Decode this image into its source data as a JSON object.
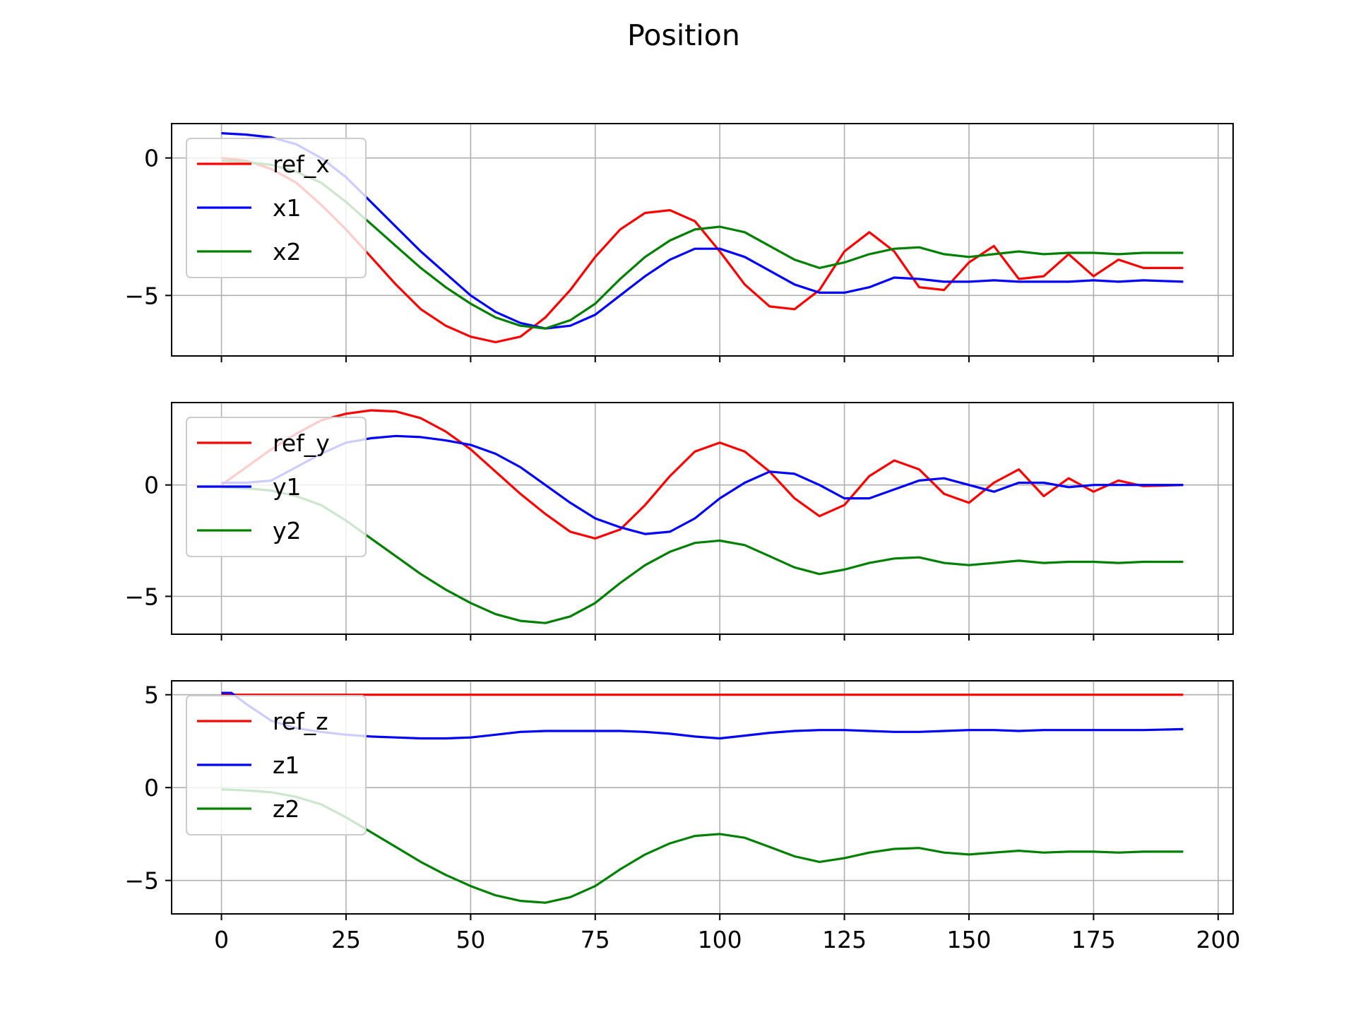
{
  "title": "Position",
  "colors": {
    "red": "#ff0000",
    "blue": "#0000ff",
    "green": "#008000",
    "grid": "#b0b0b0"
  },
  "chart_data": [
    {
      "type": "line",
      "xlim": [
        -10,
        203
      ],
      "ylim": [
        -7.2,
        1.25
      ],
      "yticks": [
        0,
        -5
      ],
      "ytick_labels": [
        "0",
        "−5"
      ],
      "xticks": [
        0,
        25,
        50,
        75,
        100,
        125,
        150,
        175,
        200
      ],
      "grid": true,
      "legend": "top-left",
      "series": [
        {
          "name": "ref_x",
          "color": "red",
          "x": [
            0,
            5,
            10,
            15,
            20,
            25,
            30,
            35,
            40,
            45,
            50,
            55,
            60,
            65,
            70,
            75,
            80,
            85,
            90,
            95,
            100,
            105,
            110,
            115,
            120,
            125,
            130,
            135,
            140,
            145,
            150,
            155,
            160,
            165,
            170,
            175,
            180,
            185,
            193
          ],
          "y": [
            0,
            -0.1,
            -0.4,
            -0.9,
            -1.7,
            -2.6,
            -3.6,
            -4.6,
            -5.5,
            -6.1,
            -6.5,
            -6.7,
            -6.5,
            -5.8,
            -4.8,
            -3.6,
            -2.6,
            -2.0,
            -1.9,
            -2.3,
            -3.4,
            -4.6,
            -5.4,
            -5.5,
            -4.8,
            -3.4,
            -2.7,
            -3.4,
            -4.7,
            -4.8,
            -3.8,
            -3.2,
            -4.4,
            -4.3,
            -3.5,
            -4.3,
            -3.7,
            -4.0,
            -4.0
          ]
        },
        {
          "name": "x1",
          "color": "blue",
          "x": [
            0,
            5,
            10,
            15,
            20,
            25,
            30,
            35,
            40,
            45,
            50,
            55,
            60,
            65,
            70,
            75,
            80,
            85,
            90,
            95,
            100,
            105,
            110,
            115,
            120,
            125,
            130,
            135,
            140,
            145,
            150,
            155,
            160,
            165,
            170,
            175,
            180,
            185,
            193
          ],
          "y": [
            0.9,
            0.85,
            0.75,
            0.5,
            0.0,
            -0.7,
            -1.6,
            -2.5,
            -3.4,
            -4.2,
            -5.0,
            -5.6,
            -6.0,
            -6.2,
            -6.1,
            -5.7,
            -5.0,
            -4.3,
            -3.7,
            -3.3,
            -3.3,
            -3.6,
            -4.1,
            -4.6,
            -4.9,
            -4.9,
            -4.7,
            -4.35,
            -4.4,
            -4.5,
            -4.5,
            -4.45,
            -4.5,
            -4.5,
            -4.5,
            -4.45,
            -4.5,
            -4.45,
            -4.5
          ]
        },
        {
          "name": "x2",
          "color": "green",
          "x": [
            0,
            5,
            10,
            15,
            20,
            25,
            30,
            35,
            40,
            45,
            50,
            55,
            60,
            65,
            70,
            75,
            80,
            85,
            90,
            95,
            100,
            105,
            110,
            115,
            120,
            125,
            130,
            135,
            140,
            145,
            150,
            155,
            160,
            165,
            170,
            175,
            180,
            185,
            193
          ],
          "y": [
            -0.1,
            -0.15,
            -0.25,
            -0.5,
            -0.9,
            -1.6,
            -2.4,
            -3.2,
            -4.0,
            -4.7,
            -5.3,
            -5.8,
            -6.1,
            -6.2,
            -5.9,
            -5.3,
            -4.4,
            -3.6,
            -3.0,
            -2.6,
            -2.5,
            -2.7,
            -3.2,
            -3.7,
            -4.0,
            -3.8,
            -3.5,
            -3.3,
            -3.25,
            -3.5,
            -3.6,
            -3.5,
            -3.4,
            -3.5,
            -3.45,
            -3.45,
            -3.5,
            -3.45,
            -3.45
          ]
        }
      ]
    },
    {
      "type": "line",
      "xlim": [
        -10,
        203
      ],
      "ylim": [
        -6.7,
        3.7
      ],
      "yticks": [
        0,
        -5
      ],
      "ytick_labels": [
        "0",
        "−5"
      ],
      "xticks": [
        0,
        25,
        50,
        75,
        100,
        125,
        150,
        175,
        200
      ],
      "grid": true,
      "legend": "top-left",
      "series": [
        {
          "name": "ref_y",
          "color": "red",
          "x": [
            0,
            5,
            10,
            15,
            20,
            25,
            30,
            35,
            40,
            45,
            50,
            55,
            60,
            65,
            70,
            75,
            80,
            85,
            90,
            95,
            100,
            105,
            110,
            115,
            120,
            125,
            130,
            135,
            140,
            145,
            150,
            155,
            160,
            165,
            170,
            175,
            180,
            185,
            193
          ],
          "y": [
            0,
            0.8,
            1.6,
            2.3,
            2.9,
            3.2,
            3.35,
            3.3,
            3.0,
            2.4,
            1.6,
            0.6,
            -0.4,
            -1.3,
            -2.1,
            -2.4,
            -2.0,
            -0.9,
            0.4,
            1.5,
            1.9,
            1.5,
            0.6,
            -0.6,
            -1.4,
            -0.9,
            0.4,
            1.1,
            0.7,
            -0.4,
            -0.8,
            0.1,
            0.7,
            -0.5,
            0.3,
            -0.3,
            0.2,
            -0.05,
            0
          ]
        },
        {
          "name": "y1",
          "color": "blue",
          "x": [
            0,
            5,
            10,
            15,
            20,
            25,
            30,
            35,
            40,
            45,
            50,
            55,
            60,
            65,
            70,
            75,
            80,
            85,
            90,
            95,
            100,
            105,
            110,
            115,
            120,
            125,
            130,
            135,
            140,
            145,
            150,
            155,
            160,
            165,
            170,
            175,
            180,
            185,
            193
          ],
          "y": [
            0.1,
            0.1,
            0.2,
            0.8,
            1.4,
            1.9,
            2.1,
            2.2,
            2.15,
            2.0,
            1.8,
            1.4,
            0.8,
            0.0,
            -0.8,
            -1.5,
            -1.9,
            -2.2,
            -2.1,
            -1.5,
            -0.6,
            0.1,
            0.6,
            0.5,
            0.0,
            -0.6,
            -0.6,
            -0.2,
            0.2,
            0.3,
            0.0,
            -0.3,
            0.1,
            0.1,
            -0.1,
            0.0,
            0.0,
            0.0,
            0.0
          ]
        },
        {
          "name": "y2",
          "color": "green",
          "x": [
            0,
            5,
            10,
            15,
            20,
            25,
            30,
            35,
            40,
            45,
            50,
            55,
            60,
            65,
            70,
            75,
            80,
            85,
            90,
            95,
            100,
            105,
            110,
            115,
            120,
            125,
            130,
            135,
            140,
            145,
            150,
            155,
            160,
            165,
            170,
            175,
            180,
            185,
            193
          ],
          "y": [
            -0.1,
            -0.15,
            -0.25,
            -0.5,
            -0.9,
            -1.6,
            -2.4,
            -3.2,
            -4.0,
            -4.7,
            -5.3,
            -5.8,
            -6.1,
            -6.2,
            -5.9,
            -5.3,
            -4.4,
            -3.6,
            -3.0,
            -2.6,
            -2.5,
            -2.7,
            -3.2,
            -3.7,
            -4.0,
            -3.8,
            -3.5,
            -3.3,
            -3.25,
            -3.5,
            -3.6,
            -3.5,
            -3.4,
            -3.5,
            -3.45,
            -3.45,
            -3.5,
            -3.45,
            -3.45
          ]
        }
      ]
    },
    {
      "type": "line",
      "xlim": [
        -10,
        203
      ],
      "ylim": [
        -6.8,
        5.75
      ],
      "yticks": [
        5,
        0,
        -5
      ],
      "ytick_labels": [
        "5",
        "0",
        "−5"
      ],
      "xticks": [
        0,
        25,
        50,
        75,
        100,
        125,
        150,
        175,
        200
      ],
      "xtick_labels": [
        "0",
        "25",
        "50",
        "75",
        "100",
        "125",
        "150",
        "175",
        "200"
      ],
      "grid": true,
      "legend": "top-left",
      "series": [
        {
          "name": "ref_z",
          "color": "red",
          "x": [
            0,
            193
          ],
          "y": [
            5.0,
            5.0
          ]
        },
        {
          "name": "z1",
          "color": "blue",
          "x": [
            0,
            2,
            5,
            10,
            15,
            20,
            25,
            30,
            35,
            40,
            45,
            50,
            55,
            60,
            65,
            70,
            75,
            80,
            85,
            90,
            95,
            100,
            105,
            110,
            115,
            120,
            125,
            130,
            135,
            140,
            145,
            150,
            155,
            160,
            165,
            170,
            175,
            180,
            185,
            193
          ],
          "y": [
            5.1,
            5.1,
            4.5,
            3.6,
            3.2,
            3.0,
            2.85,
            2.75,
            2.7,
            2.65,
            2.65,
            2.7,
            2.85,
            3.0,
            3.05,
            3.05,
            3.05,
            3.05,
            3.0,
            2.9,
            2.75,
            2.65,
            2.8,
            2.95,
            3.05,
            3.1,
            3.1,
            3.05,
            3.0,
            3.0,
            3.05,
            3.1,
            3.1,
            3.05,
            3.1,
            3.1,
            3.1,
            3.1,
            3.1,
            3.15
          ]
        },
        {
          "name": "z2",
          "color": "green",
          "x": [
            0,
            5,
            10,
            15,
            20,
            25,
            30,
            35,
            40,
            45,
            50,
            55,
            60,
            65,
            70,
            75,
            80,
            85,
            90,
            95,
            100,
            105,
            110,
            115,
            120,
            125,
            130,
            135,
            140,
            145,
            150,
            155,
            160,
            165,
            170,
            175,
            180,
            185,
            193
          ],
          "y": [
            -0.1,
            -0.15,
            -0.25,
            -0.5,
            -0.9,
            -1.6,
            -2.4,
            -3.2,
            -4.0,
            -4.7,
            -5.3,
            -5.8,
            -6.1,
            -6.2,
            -5.9,
            -5.3,
            -4.4,
            -3.6,
            -3.0,
            -2.6,
            -2.5,
            -2.7,
            -3.2,
            -3.7,
            -4.0,
            -3.8,
            -3.5,
            -3.3,
            -3.25,
            -3.5,
            -3.6,
            -3.5,
            -3.4,
            -3.5,
            -3.45,
            -3.45,
            -3.5,
            -3.45,
            -3.45
          ]
        }
      ]
    }
  ]
}
